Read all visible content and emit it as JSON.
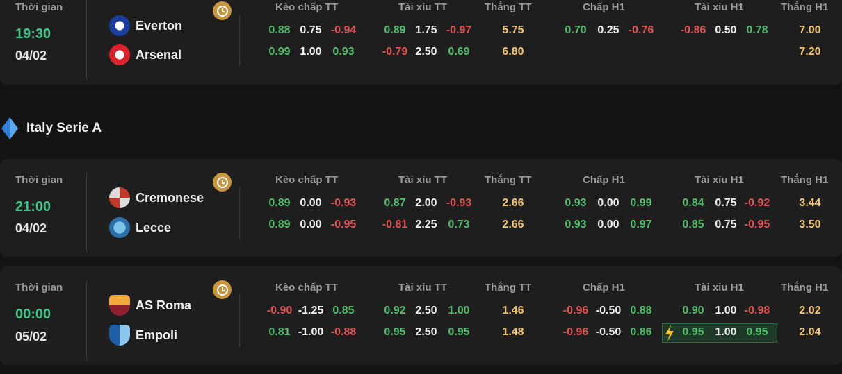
{
  "headers": {
    "time": "Thời gian",
    "handicap_ft": "Kèo chấp TT",
    "ou_ft": "Tài xỉu TT",
    "win_ft": "Thắng TT",
    "handicap_h1": "Chấp H1",
    "ou_h1": "Tài xỉu H1",
    "win_h1": "Thắng H1"
  },
  "league": {
    "name": "Italy Serie A",
    "icon": "serie-a-logo-icon"
  },
  "matches": [
    {
      "time": "19:30",
      "date": "04/02",
      "home": "Everton",
      "away": "Arsenal",
      "home_odds": {
        "hdp_ft": [
          "0.88",
          "0.75",
          "-0.94"
        ],
        "ou_ft": [
          "0.89",
          "1.75",
          "-0.97"
        ],
        "win_ft": "5.75",
        "hdp_h1": [
          "0.70",
          "0.25",
          "-0.76"
        ],
        "ou_h1": [
          "-0.86",
          "0.50",
          "0.78"
        ],
        "win_h1": "7.00"
      },
      "away_odds": {
        "hdp_ft": [
          "0.99",
          "1.00",
          "0.93"
        ],
        "ou_ft": [
          "-0.79",
          "2.50",
          "0.69"
        ],
        "win_ft": "6.80",
        "hdp_h1": [
          "",
          "",
          ""
        ],
        "ou_h1": [
          "",
          "",
          ""
        ],
        "win_h1": "7.20"
      }
    },
    {
      "time": "21:00",
      "date": "04/02",
      "home": "Cremonese",
      "away": "Lecce",
      "home_odds": {
        "hdp_ft": [
          "0.89",
          "0.00",
          "-0.93"
        ],
        "ou_ft": [
          "0.87",
          "2.00",
          "-0.93"
        ],
        "win_ft": "2.66",
        "hdp_h1": [
          "0.93",
          "0.00",
          "0.99"
        ],
        "ou_h1": [
          "0.84",
          "0.75",
          "-0.92"
        ],
        "win_h1": "3.44"
      },
      "away_odds": {
        "hdp_ft": [
          "0.89",
          "0.00",
          "-0.95"
        ],
        "ou_ft": [
          "-0.81",
          "2.25",
          "0.73"
        ],
        "win_ft": "2.66",
        "hdp_h1": [
          "0.93",
          "0.00",
          "0.97"
        ],
        "ou_h1": [
          "0.85",
          "0.75",
          "-0.95"
        ],
        "win_h1": "3.50"
      }
    },
    {
      "time": "00:00",
      "date": "05/02",
      "home": "AS Roma",
      "away": "Empoli",
      "home_odds": {
        "hdp_ft": [
          "-0.90",
          "-1.25",
          "0.85"
        ],
        "ou_ft": [
          "0.92",
          "2.50",
          "1.00"
        ],
        "win_ft": "1.46",
        "hdp_h1": [
          "-0.96",
          "-0.50",
          "0.88"
        ],
        "ou_h1": [
          "0.90",
          "1.00",
          "-0.98"
        ],
        "win_h1": "2.02"
      },
      "away_odds": {
        "hdp_ft": [
          "0.81",
          "-1.00",
          "-0.88"
        ],
        "ou_ft": [
          "0.95",
          "2.50",
          "0.95"
        ],
        "win_ft": "1.48",
        "hdp_h1": [
          "-0.96",
          "-0.50",
          "0.86"
        ],
        "ou_h1": [
          "0.95",
          "1.00",
          "0.95"
        ],
        "win_h1": "2.04"
      }
    }
  ],
  "colors": {
    "positive": "#4fbf6b",
    "negative": "#e15151",
    "win": "#f2c46d",
    "time": "#3fc58a",
    "clock": "#c9953d"
  }
}
